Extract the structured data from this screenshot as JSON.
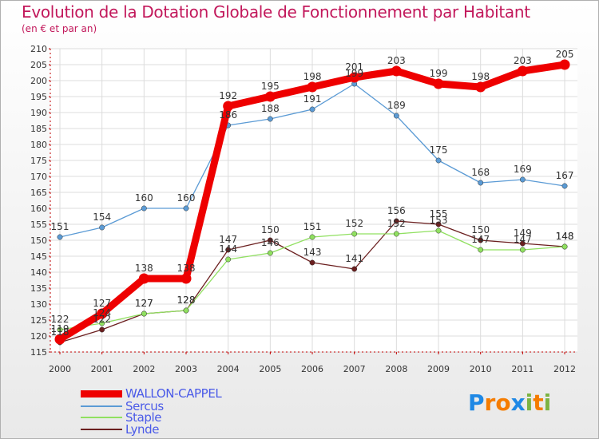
{
  "chart_data": {
    "type": "line",
    "title": "Evolution de la Dotation Globale de Fonctionnement par Habitant",
    "subtitle": "(en € et par an)",
    "xlabel": "",
    "ylabel": "",
    "categories": [
      "2000",
      "2001",
      "2002",
      "2003",
      "2004",
      "2005",
      "2006",
      "2007",
      "2008",
      "2009",
      "2010",
      "2011",
      "2012"
    ],
    "ylim": [
      115,
      210
    ],
    "ytick_step": 5,
    "grid": true,
    "legend_position": "bottom-left",
    "series": [
      {
        "name": "WALLON-CAPPEL",
        "color": "#ee0000",
        "values": [
          119,
          127,
          138,
          138,
          192,
          195,
          198,
          201,
          203,
          199,
          198,
          203,
          205
        ]
      },
      {
        "name": "Sercus",
        "color": "#5b9bd5",
        "values": [
          151,
          154,
          160,
          160,
          186,
          188,
          191,
          199,
          189,
          175,
          168,
          169,
          167
        ]
      },
      {
        "name": "Staple",
        "color": "#90e060",
        "values": [
          122,
          124,
          127,
          128,
          144,
          146,
          151,
          152,
          152,
          153,
          147,
          147,
          148
        ]
      },
      {
        "name": "Lynde",
        "color": "#6b1f1f",
        "values": [
          118,
          122,
          127,
          128,
          147,
          150,
          143,
          141,
          156,
          155,
          150,
          149,
          148
        ]
      }
    ]
  },
  "logo": {
    "text": "Proxiti",
    "letters": [
      "P",
      "r",
      "o",
      "x",
      "i",
      "t",
      "i"
    ],
    "colors": [
      "#1e88e5",
      "#f57c00",
      "#f57c00",
      "#1e88e5",
      "#7cb342",
      "#f57c00",
      "#7cb342"
    ]
  }
}
